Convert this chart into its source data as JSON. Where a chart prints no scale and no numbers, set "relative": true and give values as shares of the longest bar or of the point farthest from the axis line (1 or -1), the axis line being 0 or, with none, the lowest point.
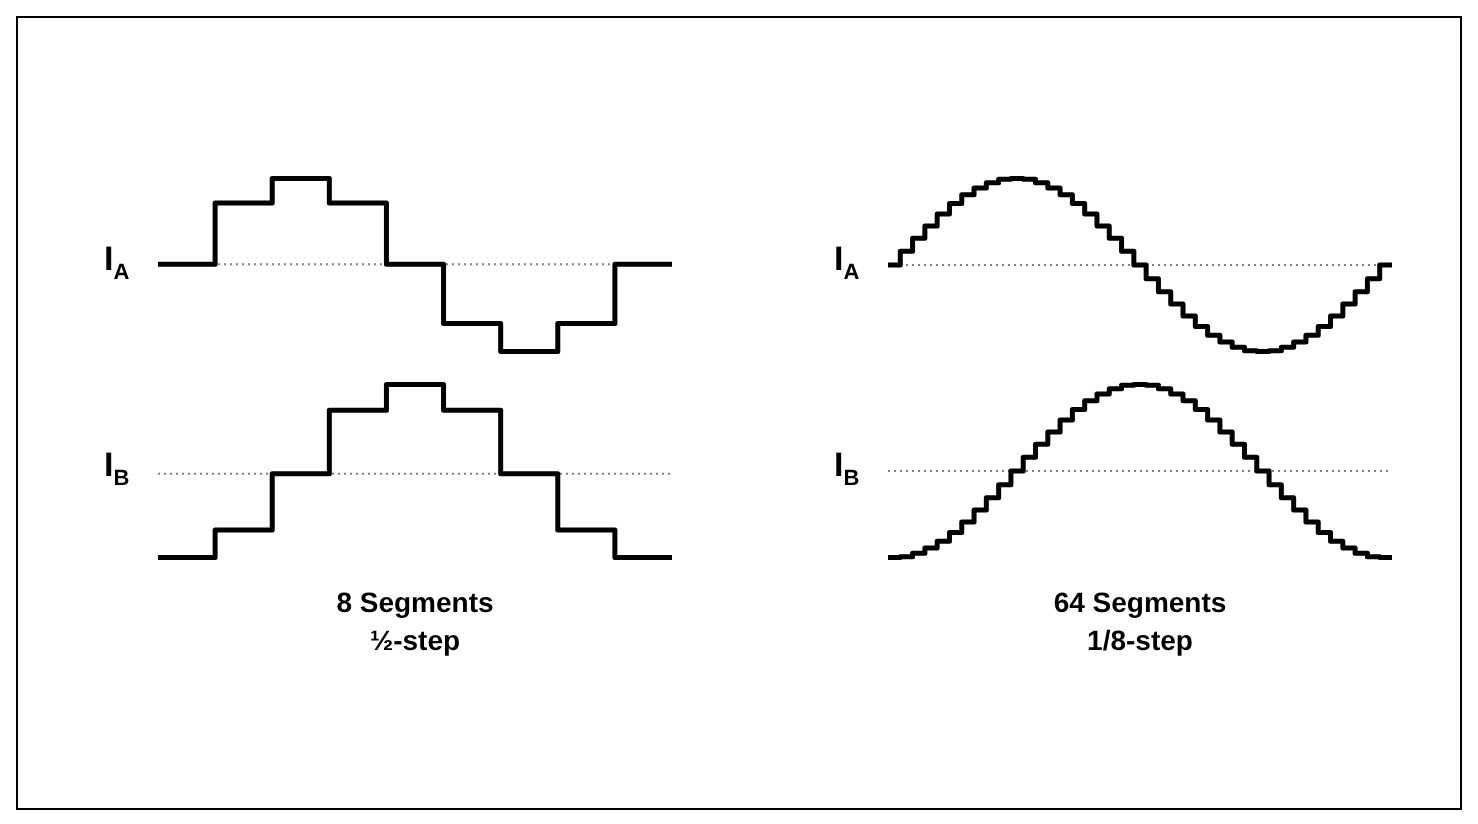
{
  "chart_data": [
    {
      "type": "step",
      "ylabel": "I$_{A}$",
      "relative": true,
      "color": "#000000",
      "categories": [
        null,
        null,
        null,
        null,
        null,
        null,
        null,
        null,
        null,
        null
      ],
      "values": [
        0,
        0.7,
        0.98,
        0.7,
        0,
        -0.68,
        -1,
        -0.68,
        0,
        0
      ],
      "ref_lines": [
        {
          "axis": "y",
          "value": 0,
          "color": "#808080",
          "line_style": "dotted"
        }
      ]
    },
    {
      "type": "step",
      "ylabel": "I$_{B}$",
      "relative": true,
      "color": "#000000",
      "categories": [
        null,
        null,
        null,
        null,
        null,
        null,
        null,
        null,
        null,
        null
      ],
      "values": [
        -0.94,
        -0.63,
        0,
        0.71,
        1,
        0.71,
        0,
        -0.63,
        -0.94,
        -0.94
      ],
      "ref_lines": [
        {
          "axis": "y",
          "value": 0,
          "color": "#808080",
          "line_style": "dotted"
        }
      ],
      "annotations": [
        "8 Segments",
        "½-step"
      ]
    },
    {
      "type": "step",
      "ylabel": "I$_{A}$",
      "relative": true,
      "color": "#000000",
      "categories": [
        null,
        null,
        null,
        null,
        null,
        null,
        null,
        null,
        null,
        null,
        null,
        null,
        null,
        null,
        null,
        null,
        null,
        null,
        null,
        null,
        null,
        null,
        null,
        null,
        null,
        null,
        null,
        null,
        null,
        null,
        null,
        null,
        null,
        null,
        null,
        null,
        null,
        null,
        null,
        null,
        null,
        null
      ],
      "values": [
        0,
        0.16,
        0.31,
        0.45,
        0.59,
        0.71,
        0.81,
        0.89,
        0.95,
        0.99,
        1,
        0.99,
        0.95,
        0.89,
        0.81,
        0.71,
        0.59,
        0.45,
        0.31,
        0.16,
        0,
        -0.16,
        -0.31,
        -0.45,
        -0.59,
        -0.71,
        -0.81,
        -0.89,
        -0.95,
        -0.99,
        -1,
        -0.99,
        -0.95,
        -0.89,
        -0.81,
        -0.71,
        -0.59,
        -0.45,
        -0.31,
        -0.16,
        0,
        0
      ],
      "ref_lines": [
        {
          "axis": "y",
          "value": 0,
          "color": "#808080",
          "line_style": "dotted"
        }
      ]
    },
    {
      "type": "step",
      "ylabel": "I$_{B}$",
      "relative": true,
      "color": "#000000",
      "categories": [
        null,
        null,
        null,
        null,
        null,
        null,
        null,
        null,
        null,
        null,
        null,
        null,
        null,
        null,
        null,
        null,
        null,
        null,
        null,
        null,
        null,
        null,
        null,
        null,
        null,
        null,
        null,
        null,
        null,
        null,
        null,
        null,
        null,
        null,
        null,
        null,
        null,
        null,
        null,
        null,
        null,
        null
      ],
      "values": [
        -1,
        -0.99,
        -0.95,
        -0.89,
        -0.81,
        -0.71,
        -0.59,
        -0.45,
        -0.31,
        -0.16,
        0,
        0.16,
        0.31,
        0.45,
        0.59,
        0.71,
        0.81,
        0.89,
        0.95,
        0.99,
        1,
        0.99,
        0.95,
        0.89,
        0.81,
        0.71,
        0.59,
        0.45,
        0.31,
        0.16,
        0,
        -0.16,
        -0.31,
        -0.45,
        -0.59,
        -0.71,
        -0.81,
        -0.89,
        -0.95,
        -0.99,
        -1,
        -1
      ],
      "ref_lines": [
        {
          "axis": "y",
          "value": 0,
          "color": "#808080",
          "line_style": "dotted"
        }
      ],
      "annotations": [
        "64 Segments",
        "1/8-step"
      ]
    }
  ]
}
